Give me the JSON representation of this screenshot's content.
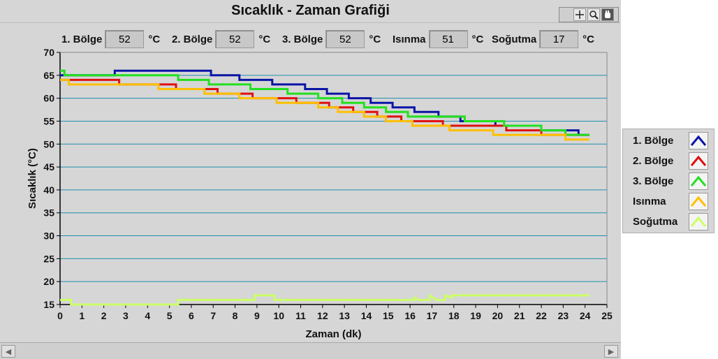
{
  "title": "Sıcaklık - Zaman Grafiği",
  "readouts": [
    {
      "label": "1. Bölge",
      "value": "52",
      "unit": "°C"
    },
    {
      "label": "2. Bölge",
      "value": "52",
      "unit": "°C"
    },
    {
      "label": "3. Bölge",
      "value": "52",
      "unit": "°C"
    },
    {
      "label": "Isınma",
      "value": "51",
      "unit": "°C"
    },
    {
      "label": "Soğutma",
      "value": "17",
      "unit": "°C"
    }
  ],
  "tools": [
    "crosshair-icon",
    "zoom-icon",
    "pan-hand-icon"
  ],
  "chart_data": {
    "type": "line",
    "title": "",
    "xlabel": "Zaman (dk)",
    "ylabel": "Sıcaklık (°C)",
    "xlim": [
      0,
      25
    ],
    "ylim": [
      15,
      70
    ],
    "xticks": [
      0,
      1,
      2,
      3,
      4,
      5,
      6,
      7,
      8,
      9,
      10,
      11,
      12,
      13,
      14,
      15,
      16,
      17,
      18,
      19,
      20,
      21,
      22,
      23,
      24,
      25
    ],
    "yticks": [
      15,
      20,
      25,
      30,
      35,
      40,
      45,
      50,
      55,
      60,
      65,
      70
    ],
    "grid": true,
    "legend_position": "right",
    "series": [
      {
        "name": "1. Bölge",
        "color": "#0a14a6",
        "points": [
          [
            0,
            65
          ],
          [
            2.5,
            65
          ],
          [
            2.5,
            66
          ],
          [
            6.9,
            66
          ],
          [
            6.9,
            65
          ],
          [
            8.2,
            65
          ],
          [
            8.2,
            64
          ],
          [
            9.7,
            64
          ],
          [
            9.7,
            63
          ],
          [
            11.2,
            63
          ],
          [
            11.2,
            62
          ],
          [
            12.2,
            62
          ],
          [
            12.2,
            61
          ],
          [
            13.2,
            61
          ],
          [
            13.2,
            60
          ],
          [
            14.2,
            60
          ],
          [
            14.2,
            59
          ],
          [
            15.2,
            59
          ],
          [
            15.2,
            58
          ],
          [
            16.2,
            58
          ],
          [
            16.2,
            57
          ],
          [
            17.3,
            57
          ],
          [
            17.3,
            56
          ],
          [
            18.3,
            56
          ],
          [
            18.3,
            55
          ],
          [
            19.9,
            55
          ],
          [
            19.9,
            54
          ],
          [
            22.0,
            54
          ],
          [
            22.0,
            53
          ],
          [
            23.7,
            53
          ],
          [
            23.7,
            52
          ],
          [
            24.2,
            52
          ]
        ]
      },
      {
        "name": "2. Bölge",
        "color": "#e01010",
        "points": [
          [
            0,
            64
          ],
          [
            2.7,
            64
          ],
          [
            2.7,
            63
          ],
          [
            5.3,
            63
          ],
          [
            5.3,
            62
          ],
          [
            7.2,
            62
          ],
          [
            7.2,
            61
          ],
          [
            8.8,
            61
          ],
          [
            8.8,
            60
          ],
          [
            10.8,
            60
          ],
          [
            10.8,
            59
          ],
          [
            12.3,
            59
          ],
          [
            12.3,
            58
          ],
          [
            13.4,
            58
          ],
          [
            13.4,
            57
          ],
          [
            14.5,
            57
          ],
          [
            14.5,
            56
          ],
          [
            15.6,
            56
          ],
          [
            15.6,
            55
          ],
          [
            17.5,
            55
          ],
          [
            17.5,
            54
          ],
          [
            20.4,
            54
          ],
          [
            20.4,
            53
          ],
          [
            22.0,
            53
          ],
          [
            22.0,
            52
          ],
          [
            23.6,
            52
          ],
          [
            23.6,
            52
          ],
          [
            24.2,
            52
          ]
        ]
      },
      {
        "name": "3. Bölge",
        "color": "#22e020",
        "points": [
          [
            0,
            66
          ],
          [
            0.2,
            66
          ],
          [
            0.2,
            65
          ],
          [
            5.4,
            65
          ],
          [
            5.4,
            64
          ],
          [
            6.8,
            64
          ],
          [
            6.8,
            63
          ],
          [
            8.7,
            63
          ],
          [
            8.7,
            62
          ],
          [
            10.4,
            62
          ],
          [
            10.4,
            61
          ],
          [
            11.8,
            61
          ],
          [
            11.8,
            60
          ],
          [
            12.9,
            60
          ],
          [
            12.9,
            59
          ],
          [
            13.9,
            59
          ],
          [
            13.9,
            58
          ],
          [
            14.9,
            58
          ],
          [
            14.9,
            57
          ],
          [
            15.9,
            57
          ],
          [
            15.9,
            56
          ],
          [
            18.5,
            56
          ],
          [
            18.5,
            55
          ],
          [
            20.3,
            55
          ],
          [
            20.3,
            54
          ],
          [
            22.0,
            54
          ],
          [
            22.0,
            53
          ],
          [
            23.1,
            53
          ],
          [
            23.1,
            52
          ],
          [
            24.2,
            52
          ]
        ]
      },
      {
        "name": "Isınma",
        "color": "#ffc000",
        "points": [
          [
            0,
            64
          ],
          [
            0.4,
            64
          ],
          [
            0.4,
            63
          ],
          [
            4.5,
            63
          ],
          [
            4.5,
            62
          ],
          [
            6.6,
            62
          ],
          [
            6.6,
            61
          ],
          [
            8.2,
            61
          ],
          [
            8.2,
            60
          ],
          [
            9.9,
            60
          ],
          [
            9.9,
            59
          ],
          [
            11.8,
            59
          ],
          [
            11.8,
            58
          ],
          [
            12.7,
            58
          ],
          [
            12.7,
            57
          ],
          [
            13.9,
            57
          ],
          [
            13.9,
            56
          ],
          [
            14.9,
            56
          ],
          [
            14.9,
            55
          ],
          [
            16.1,
            55
          ],
          [
            16.1,
            54
          ],
          [
            17.8,
            54
          ],
          [
            17.8,
            53
          ],
          [
            19.8,
            53
          ],
          [
            19.8,
            52
          ],
          [
            23.1,
            52
          ],
          [
            23.1,
            51
          ],
          [
            24.2,
            51
          ]
        ]
      },
      {
        "name": "Soğutma",
        "color": "#ccff66",
        "points": [
          [
            0,
            16
          ],
          [
            0.5,
            16
          ],
          [
            0.5,
            15
          ],
          [
            5.4,
            15
          ],
          [
            5.4,
            16
          ],
          [
            8.9,
            16
          ],
          [
            8.9,
            17
          ],
          [
            9.8,
            17
          ],
          [
            9.8,
            16
          ],
          [
            16.2,
            16
          ],
          [
            16.2,
            16.5
          ],
          [
            16.4,
            16
          ],
          [
            16.9,
            16
          ],
          [
            16.9,
            17
          ],
          [
            17.2,
            16
          ],
          [
            17.6,
            16
          ],
          [
            17.6,
            17
          ],
          [
            17.9,
            16.5
          ],
          [
            17.9,
            17
          ],
          [
            24.2,
            17
          ]
        ]
      }
    ]
  }
}
